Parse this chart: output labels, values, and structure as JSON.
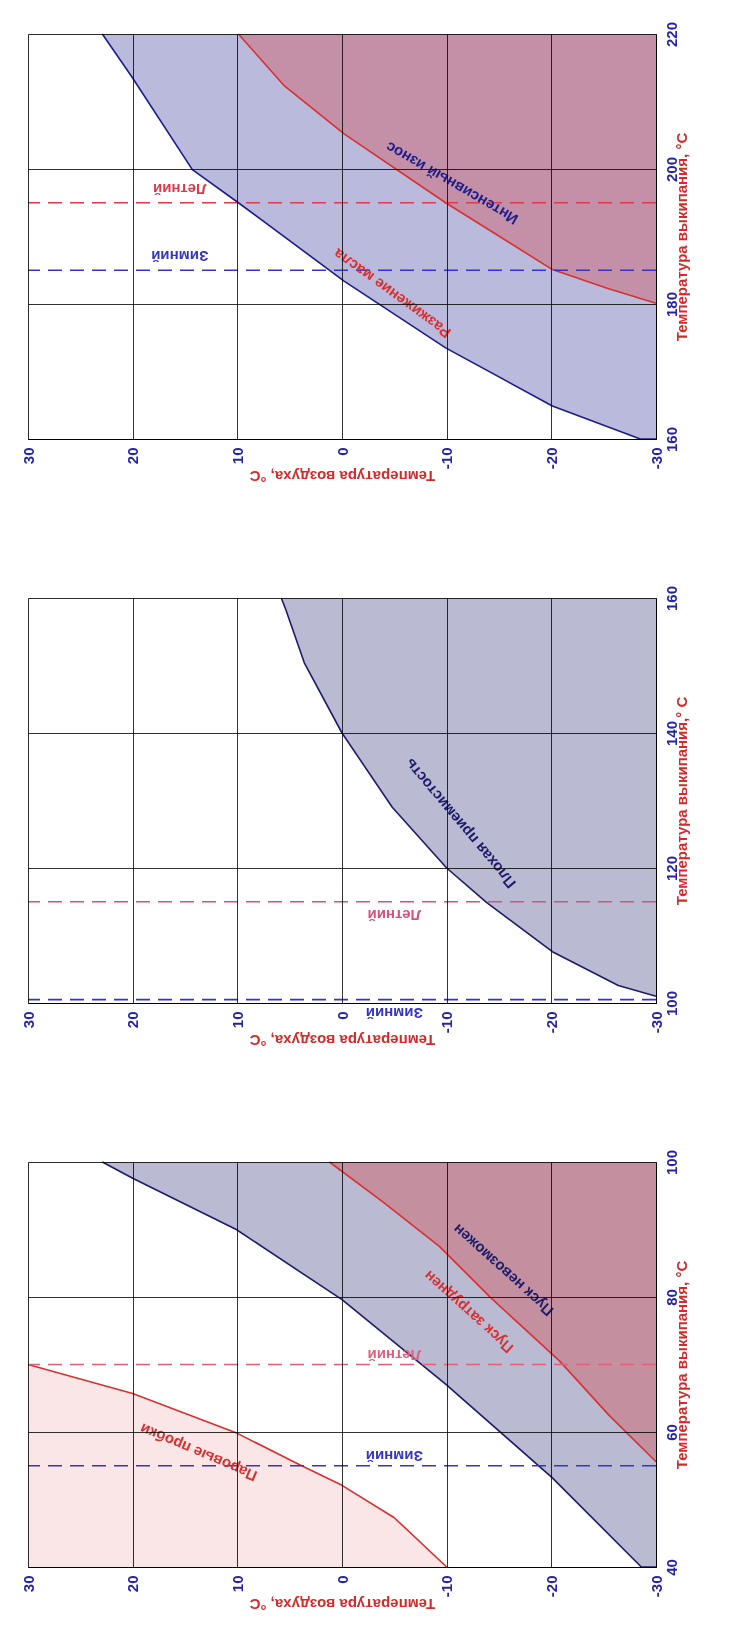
{
  "chart_data": [
    {
      "type": "line",
      "xlabel": "Температура воздуха, °С",
      "ylabel": "Температура выкипания, °С",
      "xlim": [
        30,
        -30
      ],
      "ylim": [
        40,
        100
      ],
      "xticks": [
        30,
        20,
        10,
        0,
        -10,
        -20,
        -30
      ],
      "yticks": [
        40,
        60,
        80,
        100
      ],
      "grid": true,
      "series": [
        {
          "name": "Пуск невозможен",
          "color": "#1c1c6b",
          "x": [
            22.9,
            20,
            10.1,
            0,
            -9.9,
            -20.1,
            -28.6,
            -30
          ],
          "values": [
            100,
            97.6,
            90,
            79.6,
            67.1,
            53.2,
            40,
            40
          ],
          "lower": [
            100,
            97.6,
            90,
            79.6,
            67.1,
            53.2,
            40,
            40
          ],
          "upper": [
            100,
            100,
            100,
            100,
            100,
            100,
            100,
            100
          ]
        },
        {
          "name": "Пуск затруднен",
          "color": "#d93030",
          "x": [
            1.2,
            -3.9,
            -9.3,
            -14.2,
            -20.8,
            -25.5,
            -30
          ],
          "values": [
            100,
            94.1,
            87.5,
            79.9,
            70.5,
            62.5,
            55.6
          ],
          "lower": [
            100,
            94.1,
            87.5,
            79.9,
            70.5,
            62.5,
            55.6
          ],
          "upper": [
            100,
            100,
            100,
            100,
            100,
            100,
            100
          ]
        },
        {
          "name": "Паровые пробки",
          "color": "#d93030",
          "x": [
            30,
            20,
            10,
            4,
            0,
            -5,
            -10
          ],
          "values": [
            70,
            65.7,
            59.8,
            55.1,
            52.1,
            47.3,
            40
          ],
          "lower": [
            40,
            40,
            40,
            40,
            40,
            40,
            40
          ],
          "upper": [
            70,
            65.7,
            59.8,
            55.1,
            52.1,
            47.3,
            40
          ]
        }
      ],
      "ref_lines": [
        {
          "axis": "y",
          "value": 55,
          "label": "Зимний",
          "color": "#3434c8",
          "line_style": "dashed"
        },
        {
          "axis": "y",
          "value": 70,
          "label": "Летний",
          "color": "#e0607a",
          "line_style": "dashed"
        }
      ]
    },
    {
      "type": "line",
      "xlabel": "Температура воздуха, °С",
      "ylabel": "Температура выкипания,° С",
      "xlim": [
        30,
        -30
      ],
      "ylim": [
        100,
        160
      ],
      "xticks": [
        30,
        20,
        10,
        0,
        -10,
        -20,
        -30
      ],
      "yticks": [
        100,
        120,
        140,
        160
      ],
      "grid": true,
      "series": [
        {
          "name": "Плохая приемистость",
          "color": "#1c1c6b",
          "x": [
            5.8,
            5.4,
            3.6,
            0,
            -4.8,
            -10,
            -13.8,
            -20.1,
            -26.4,
            -30
          ],
          "values": [
            160,
            158.4,
            150.4,
            140,
            129,
            120,
            114.9,
            107.6,
            102.6,
            101
          ],
          "lower": [
            160,
            158.4,
            150.4,
            140,
            129,
            120,
            114.9,
            107.6,
            102.6,
            101
          ],
          "upper": [
            160,
            160,
            160,
            160,
            160,
            160,
            160,
            160,
            160,
            160
          ]
        }
      ],
      "ref_lines": [
        {
          "axis": "y",
          "value": 100.5,
          "label": "Зимний",
          "color": "#3434c8",
          "line_style": "dashed"
        },
        {
          "axis": "y",
          "value": 115,
          "label": "Летний",
          "color": "#d9507a",
          "line_style": "dashed"
        }
      ]
    },
    {
      "type": "line",
      "xlabel": "Температура воздуха, °С",
      "ylabel": "Температура выкипания, °С",
      "xlim": [
        30,
        -30
      ],
      "ylim": [
        160,
        220
      ],
      "xticks": [
        30,
        20,
        10,
        0,
        -10,
        -20,
        -30
      ],
      "yticks": [
        160,
        180,
        200,
        220
      ],
      "grid": true,
      "series": [
        {
          "name": "Интенсивный износ",
          "color": "#1c1c8c",
          "x": [
            22.9,
            20.1,
            14.3,
            9.9,
            -0.2,
            -9.9,
            -20.1,
            -28.5,
            -30
          ],
          "values": [
            220,
            213.7,
            199.9,
            195,
            183.4,
            173.5,
            164.9,
            160,
            160
          ],
          "lower": [
            220,
            213.7,
            199.9,
            195,
            183.4,
            173.5,
            164.9,
            160,
            160
          ],
          "upper": [
            220,
            220,
            220,
            220,
            220,
            220,
            220,
            220,
            220
          ]
        },
        {
          "name": "Разжижение масла",
          "color": "#d93030",
          "x": [
            9.9,
            5.5,
            -0.2,
            -9.9,
            -20.1,
            -25.4,
            -30
          ],
          "values": [
            220,
            212.3,
            205.2,
            195,
            185.1,
            182.3,
            180.1
          ],
          "lower": [
            220,
            212.3,
            205.2,
            195,
            185.1,
            182.3,
            180.1
          ],
          "upper": [
            220,
            220,
            220,
            220,
            220,
            220,
            220
          ]
        }
      ],
      "ref_lines": [
        {
          "axis": "y",
          "value": 185,
          "label": "Зимний",
          "color": "#3434c8",
          "line_style": "dashed"
        },
        {
          "axis": "y",
          "value": 195,
          "label": "Летний",
          "color": "#dd3b4b",
          "line_style": "dashed"
        }
      ]
    }
  ]
}
